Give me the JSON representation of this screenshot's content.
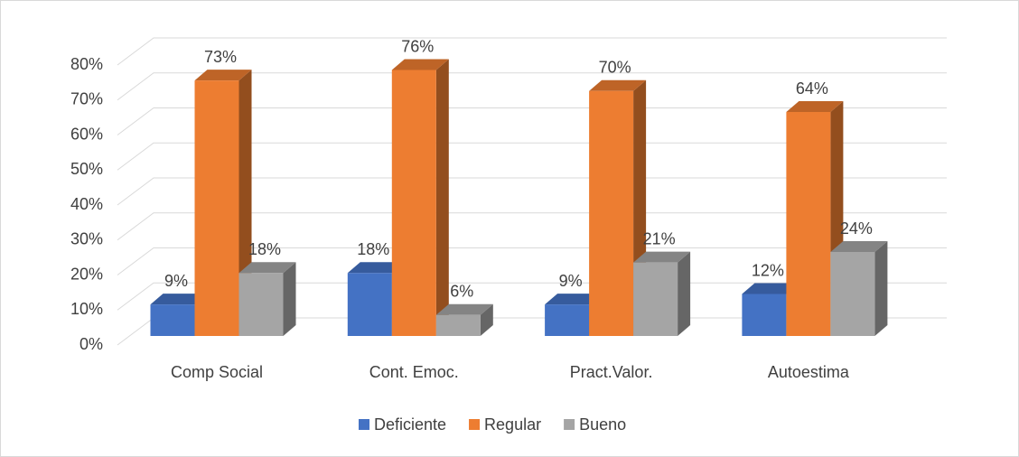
{
  "chart_data": {
    "type": "bar3d",
    "categories": [
      "Comp Social",
      "Cont. Emoc.",
      "Pract.Valor.",
      "Autoestima"
    ],
    "series": [
      {
        "name": "Deficiente",
        "color": "#4472c4",
        "values": [
          9,
          18,
          9,
          12
        ],
        "value_labels": [
          "9%",
          "18%",
          "9%",
          "12%"
        ]
      },
      {
        "name": "Regular",
        "color": "#ed7d31",
        "values": [
          73,
          76,
          70,
          64
        ],
        "value_labels": [
          "73%",
          "76%",
          "70%",
          "64%"
        ]
      },
      {
        "name": "Bueno",
        "color": "#a5a5a5",
        "values": [
          18,
          6,
          21,
          24
        ],
        "value_labels": [
          "18%",
          "6%",
          "21%",
          "24%"
        ]
      }
    ],
    "ylim": [
      0,
      80
    ],
    "yticks": [
      {
        "value": 0,
        "label": "0%"
      },
      {
        "value": 10,
        "label": "10%"
      },
      {
        "value": 20,
        "label": "20%"
      },
      {
        "value": 30,
        "label": "30%"
      },
      {
        "value": 40,
        "label": "40%"
      },
      {
        "value": 50,
        "label": "50%"
      },
      {
        "value": 60,
        "label": "60%"
      },
      {
        "value": 70,
        "label": "70%"
      },
      {
        "value": 80,
        "label": "80%"
      }
    ],
    "grid": true,
    "legend": "bottom"
  }
}
